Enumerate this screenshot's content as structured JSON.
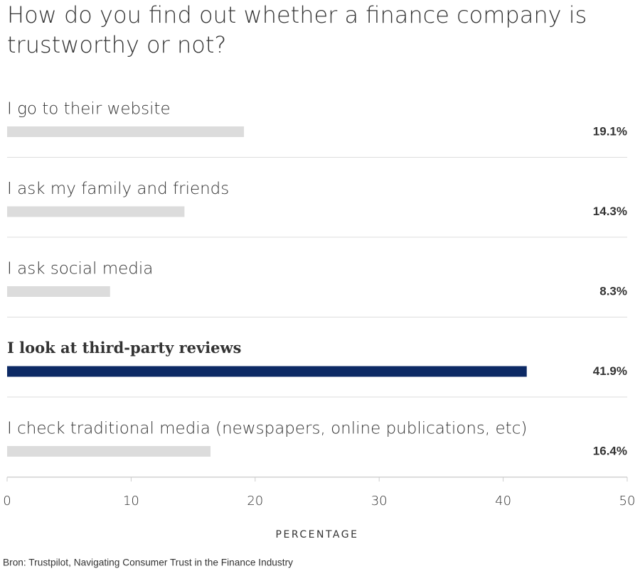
{
  "chart_data": {
    "type": "hbar",
    "title": "How do you find out whether a finance company is trustworthy or not?",
    "categories": [
      "I go to their website",
      "I ask my family and friends",
      "I ask social media",
      "I look at third-party reviews",
      "I check traditional media (newspapers, online publications, etc)"
    ],
    "values": [
      19.1,
      14.3,
      8.3,
      41.9,
      16.4
    ],
    "value_labels": [
      "19.1%",
      "14.3%",
      "8.3%",
      "41.9%",
      "16.4%"
    ],
    "color": "#dcdcdc",
    "highlight": 3,
    "highlight_color": "#0d2a65",
    "xlim": [
      0,
      50
    ],
    "xticks": [
      0,
      10,
      20,
      30,
      40,
      50
    ],
    "x_label": "PERCENTAGE",
    "source": "Bron: Trustpilot, Navigating Consumer Trust in the Finance Industry",
    "grid": false
  }
}
